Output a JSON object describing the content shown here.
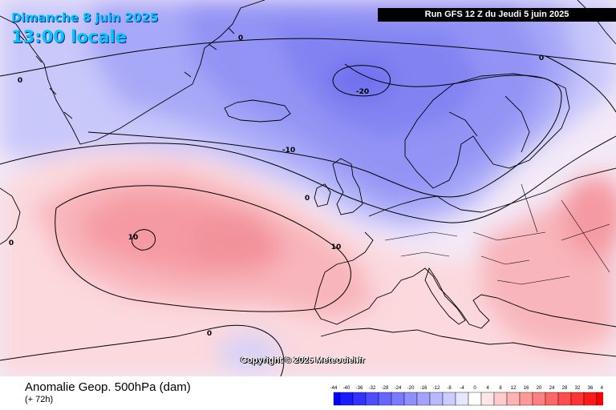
{
  "header": {
    "date": "Dimanche 8 juin 2025",
    "local_time": "13:00 locale",
    "run_info": "Run GFS 12 Z du Jeudi 5 juin 2025"
  },
  "map": {
    "copyright": "Copyright © 2025 Meteociel.fr",
    "contour_labels": [
      {
        "text": "0",
        "region": "greenland-west"
      },
      {
        "text": "0",
        "region": "north-atlantic-north"
      },
      {
        "text": "0",
        "region": "norway-sea-east"
      },
      {
        "text": "-20",
        "region": "norwegian-sea-low"
      },
      {
        "text": "-10",
        "region": "north-of-scotland"
      },
      {
        "text": "0",
        "region": "ireland-south"
      },
      {
        "text": "10",
        "region": "central-atlantic-high"
      },
      {
        "text": "10",
        "region": "bay-of-biscay"
      },
      {
        "text": "0",
        "region": "west-atlantic"
      },
      {
        "text": "0",
        "region": "azores-south"
      }
    ]
  },
  "footer": {
    "parameter": "Anomalie Geop. 500hPa (dam)",
    "lead_time": "(+ 72h)"
  },
  "legend": {
    "labels": [
      "-44",
      "-40",
      "-36",
      "-32",
      "-28",
      "-24",
      "-20",
      "-16",
      "-12",
      "-8",
      "-4",
      "0",
      "4",
      "8",
      "12",
      "16",
      "20",
      "24",
      "28",
      "32",
      "36",
      "40"
    ],
    "colors": [
      "#0000ff",
      "#1a1aff",
      "#3333ff",
      "#4d4dff",
      "#6666ff",
      "#7a7aff",
      "#8f8fff",
      "#a3a3ff",
      "#b8b8ff",
      "#ccccff",
      "#e6e6ff",
      "#ffffff",
      "#ffe6e6",
      "#ffcccc",
      "#ffb3b3",
      "#ff9999",
      "#ff8080",
      "#ff6666",
      "#ff4d4d",
      "#ff3333",
      "#ff1a1a",
      "#ff0000"
    ]
  },
  "colors": {
    "header_text": "#00c8ff",
    "negative_anomaly": "#8c8cf4",
    "positive_anomaly": "#f7a0a6",
    "coastline": "#000000"
  }
}
